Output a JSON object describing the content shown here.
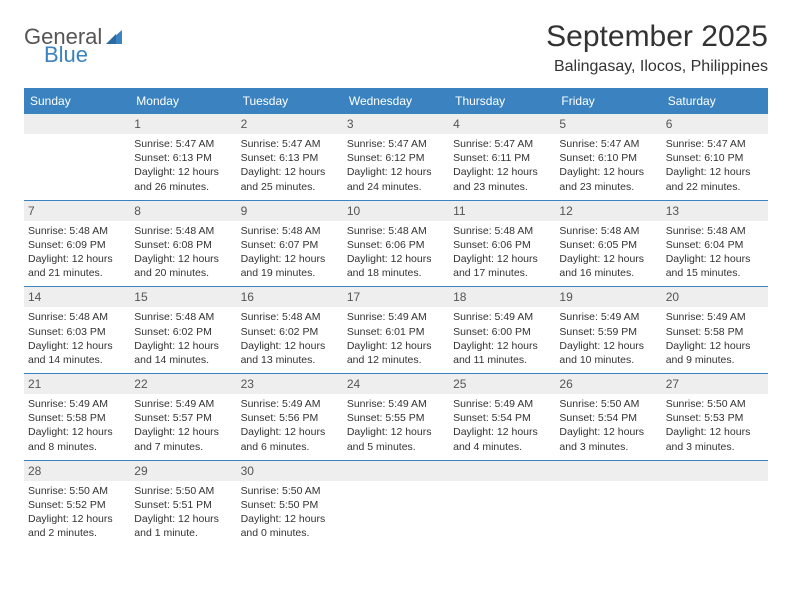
{
  "brand": {
    "part1": "General",
    "part2": "Blue"
  },
  "title": "September 2025",
  "location": "Balingasay, Ilocos, Philippines",
  "colors": {
    "accent": "#3b83c0",
    "background": "#ffffff",
    "header_text": "#ffffff",
    "daynum_bg": "#eeeeee",
    "body_text": "#333333"
  },
  "typography": {
    "title_fontsize": 30,
    "location_fontsize": 16,
    "dayheader_fontsize": 12,
    "cell_fontsize": 10.5
  },
  "day_names": [
    "Sunday",
    "Monday",
    "Tuesday",
    "Wednesday",
    "Thursday",
    "Friday",
    "Saturday"
  ],
  "weeks": [
    [
      {
        "day": "",
        "sunrise": "",
        "sunset": "",
        "daylight": ""
      },
      {
        "day": "1",
        "sunrise": "Sunrise: 5:47 AM",
        "sunset": "Sunset: 6:13 PM",
        "daylight": "Daylight: 12 hours and 26 minutes."
      },
      {
        "day": "2",
        "sunrise": "Sunrise: 5:47 AM",
        "sunset": "Sunset: 6:13 PM",
        "daylight": "Daylight: 12 hours and 25 minutes."
      },
      {
        "day": "3",
        "sunrise": "Sunrise: 5:47 AM",
        "sunset": "Sunset: 6:12 PM",
        "daylight": "Daylight: 12 hours and 24 minutes."
      },
      {
        "day": "4",
        "sunrise": "Sunrise: 5:47 AM",
        "sunset": "Sunset: 6:11 PM",
        "daylight": "Daylight: 12 hours and 23 minutes."
      },
      {
        "day": "5",
        "sunrise": "Sunrise: 5:47 AM",
        "sunset": "Sunset: 6:10 PM",
        "daylight": "Daylight: 12 hours and 23 minutes."
      },
      {
        "day": "6",
        "sunrise": "Sunrise: 5:47 AM",
        "sunset": "Sunset: 6:10 PM",
        "daylight": "Daylight: 12 hours and 22 minutes."
      }
    ],
    [
      {
        "day": "7",
        "sunrise": "Sunrise: 5:48 AM",
        "sunset": "Sunset: 6:09 PM",
        "daylight": "Daylight: 12 hours and 21 minutes."
      },
      {
        "day": "8",
        "sunrise": "Sunrise: 5:48 AM",
        "sunset": "Sunset: 6:08 PM",
        "daylight": "Daylight: 12 hours and 20 minutes."
      },
      {
        "day": "9",
        "sunrise": "Sunrise: 5:48 AM",
        "sunset": "Sunset: 6:07 PM",
        "daylight": "Daylight: 12 hours and 19 minutes."
      },
      {
        "day": "10",
        "sunrise": "Sunrise: 5:48 AM",
        "sunset": "Sunset: 6:06 PM",
        "daylight": "Daylight: 12 hours and 18 minutes."
      },
      {
        "day": "11",
        "sunrise": "Sunrise: 5:48 AM",
        "sunset": "Sunset: 6:06 PM",
        "daylight": "Daylight: 12 hours and 17 minutes."
      },
      {
        "day": "12",
        "sunrise": "Sunrise: 5:48 AM",
        "sunset": "Sunset: 6:05 PM",
        "daylight": "Daylight: 12 hours and 16 minutes."
      },
      {
        "day": "13",
        "sunrise": "Sunrise: 5:48 AM",
        "sunset": "Sunset: 6:04 PM",
        "daylight": "Daylight: 12 hours and 15 minutes."
      }
    ],
    [
      {
        "day": "14",
        "sunrise": "Sunrise: 5:48 AM",
        "sunset": "Sunset: 6:03 PM",
        "daylight": "Daylight: 12 hours and 14 minutes."
      },
      {
        "day": "15",
        "sunrise": "Sunrise: 5:48 AM",
        "sunset": "Sunset: 6:02 PM",
        "daylight": "Daylight: 12 hours and 14 minutes."
      },
      {
        "day": "16",
        "sunrise": "Sunrise: 5:48 AM",
        "sunset": "Sunset: 6:02 PM",
        "daylight": "Daylight: 12 hours and 13 minutes."
      },
      {
        "day": "17",
        "sunrise": "Sunrise: 5:49 AM",
        "sunset": "Sunset: 6:01 PM",
        "daylight": "Daylight: 12 hours and 12 minutes."
      },
      {
        "day": "18",
        "sunrise": "Sunrise: 5:49 AM",
        "sunset": "Sunset: 6:00 PM",
        "daylight": "Daylight: 12 hours and 11 minutes."
      },
      {
        "day": "19",
        "sunrise": "Sunrise: 5:49 AM",
        "sunset": "Sunset: 5:59 PM",
        "daylight": "Daylight: 12 hours and 10 minutes."
      },
      {
        "day": "20",
        "sunrise": "Sunrise: 5:49 AM",
        "sunset": "Sunset: 5:58 PM",
        "daylight": "Daylight: 12 hours and 9 minutes."
      }
    ],
    [
      {
        "day": "21",
        "sunrise": "Sunrise: 5:49 AM",
        "sunset": "Sunset: 5:58 PM",
        "daylight": "Daylight: 12 hours and 8 minutes."
      },
      {
        "day": "22",
        "sunrise": "Sunrise: 5:49 AM",
        "sunset": "Sunset: 5:57 PM",
        "daylight": "Daylight: 12 hours and 7 minutes."
      },
      {
        "day": "23",
        "sunrise": "Sunrise: 5:49 AM",
        "sunset": "Sunset: 5:56 PM",
        "daylight": "Daylight: 12 hours and 6 minutes."
      },
      {
        "day": "24",
        "sunrise": "Sunrise: 5:49 AM",
        "sunset": "Sunset: 5:55 PM",
        "daylight": "Daylight: 12 hours and 5 minutes."
      },
      {
        "day": "25",
        "sunrise": "Sunrise: 5:49 AM",
        "sunset": "Sunset: 5:54 PM",
        "daylight": "Daylight: 12 hours and 4 minutes."
      },
      {
        "day": "26",
        "sunrise": "Sunrise: 5:50 AM",
        "sunset": "Sunset: 5:54 PM",
        "daylight": "Daylight: 12 hours and 3 minutes."
      },
      {
        "day": "27",
        "sunrise": "Sunrise: 5:50 AM",
        "sunset": "Sunset: 5:53 PM",
        "daylight": "Daylight: 12 hours and 3 minutes."
      }
    ],
    [
      {
        "day": "28",
        "sunrise": "Sunrise: 5:50 AM",
        "sunset": "Sunset: 5:52 PM",
        "daylight": "Daylight: 12 hours and 2 minutes."
      },
      {
        "day": "29",
        "sunrise": "Sunrise: 5:50 AM",
        "sunset": "Sunset: 5:51 PM",
        "daylight": "Daylight: 12 hours and 1 minute."
      },
      {
        "day": "30",
        "sunrise": "Sunrise: 5:50 AM",
        "sunset": "Sunset: 5:50 PM",
        "daylight": "Daylight: 12 hours and 0 minutes."
      },
      {
        "day": "",
        "sunrise": "",
        "sunset": "",
        "daylight": ""
      },
      {
        "day": "",
        "sunrise": "",
        "sunset": "",
        "daylight": ""
      },
      {
        "day": "",
        "sunrise": "",
        "sunset": "",
        "daylight": ""
      },
      {
        "day": "",
        "sunrise": "",
        "sunset": "",
        "daylight": ""
      }
    ]
  ]
}
